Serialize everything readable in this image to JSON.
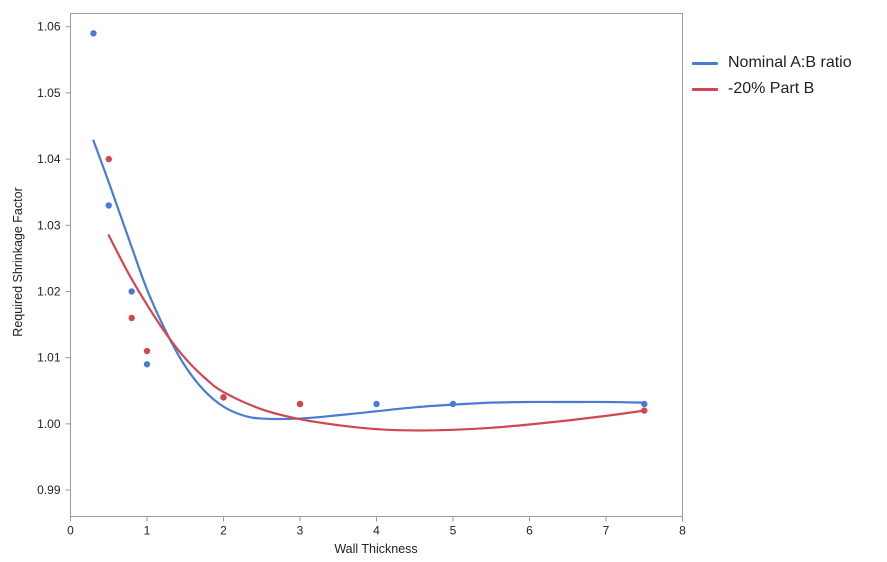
{
  "chart_data": {
    "type": "scatter",
    "xlabel": "Wall Thickness",
    "ylabel": "Required Shrinkage Factor",
    "xlim": [
      0,
      8
    ],
    "ylim": [
      0.986,
      1.062
    ],
    "x_ticks": [
      0,
      1,
      2,
      3,
      4,
      5,
      6,
      7,
      8
    ],
    "y_ticks": [
      0.99,
      1.0,
      1.01,
      1.02,
      1.03,
      1.04,
      1.05,
      1.06
    ],
    "x_tick_labels": [
      "0",
      "1",
      "2",
      "3",
      "4",
      "5",
      "6",
      "7",
      "8"
    ],
    "y_tick_labels": [
      "0.99",
      "1.00",
      "1.01",
      "1.02",
      "1.03",
      "1.04",
      "1.05",
      "1.06"
    ],
    "grid": false,
    "legend_position": "right",
    "series": [
      {
        "name": "Nominal A:B ratio",
        "color": "#4a7bd4",
        "points": [
          {
            "x": 0.3,
            "y": 1.059
          },
          {
            "x": 0.5,
            "y": 1.033
          },
          {
            "x": 0.8,
            "y": 1.02
          },
          {
            "x": 1.0,
            "y": 1.009
          },
          {
            "x": 2.0,
            "y": 1.004
          },
          {
            "x": 3.0,
            "y": 1.003
          },
          {
            "x": 4.0,
            "y": 1.003
          },
          {
            "x": 5.0,
            "y": 1.003
          },
          {
            "x": 7.5,
            "y": 1.003
          }
        ],
        "fit": [
          {
            "x": 0.3,
            "y": 1.0428
          },
          {
            "x": 0.5,
            "y": 1.0365
          },
          {
            "x": 0.8,
            "y": 1.0267
          },
          {
            "x": 1.0,
            "y": 1.0203
          },
          {
            "x": 1.25,
            "y": 1.0139
          },
          {
            "x": 1.5,
            "y": 1.0087
          },
          {
            "x": 1.75,
            "y": 1.005
          },
          {
            "x": 2.0,
            "y": 1.0026
          },
          {
            "x": 2.25,
            "y": 1.0013
          },
          {
            "x": 2.5,
            "y": 1.0008
          },
          {
            "x": 3.0,
            "y": 1.0008
          },
          {
            "x": 3.5,
            "y": 1.0013
          },
          {
            "x": 4.0,
            "y": 1.0019
          },
          {
            "x": 4.5,
            "y": 1.0025
          },
          {
            "x": 5.0,
            "y": 1.0029
          },
          {
            "x": 5.5,
            "y": 1.0032
          },
          {
            "x": 6.0,
            "y": 1.0033
          },
          {
            "x": 6.5,
            "y": 1.0033
          },
          {
            "x": 7.0,
            "y": 1.0033
          },
          {
            "x": 7.5,
            "y": 1.0032
          }
        ]
      },
      {
        "name": "-20% Part B",
        "color": "#d2474f",
        "points": [
          {
            "x": 0.5,
            "y": 1.04
          },
          {
            "x": 0.8,
            "y": 1.016
          },
          {
            "x": 1.0,
            "y": 1.011
          },
          {
            "x": 2.0,
            "y": 1.004
          },
          {
            "x": 3.0,
            "y": 1.003
          },
          {
            "x": 7.5,
            "y": 1.002
          }
        ],
        "fit": [
          {
            "x": 0.5,
            "y": 1.0285
          },
          {
            "x": 0.75,
            "y": 1.0229
          },
          {
            "x": 1.0,
            "y": 1.018
          },
          {
            "x": 1.25,
            "y": 1.0136
          },
          {
            "x": 1.5,
            "y": 1.0099
          },
          {
            "x": 1.75,
            "y": 1.007
          },
          {
            "x": 2.0,
            "y": 1.0048
          },
          {
            "x": 2.5,
            "y": 1.0022
          },
          {
            "x": 3.0,
            "y": 1.0007
          },
          {
            "x": 3.5,
            "y": 0.9998
          },
          {
            "x": 4.0,
            "y": 0.9992
          },
          {
            "x": 4.5,
            "y": 0.999
          },
          {
            "x": 5.0,
            "y": 0.9991
          },
          {
            "x": 5.5,
            "y": 0.9994
          },
          {
            "x": 6.0,
            "y": 0.9999
          },
          {
            "x": 6.5,
            "y": 1.0005
          },
          {
            "x": 7.0,
            "y": 1.0012
          },
          {
            "x": 7.5,
            "y": 1.002
          }
        ]
      }
    ]
  }
}
